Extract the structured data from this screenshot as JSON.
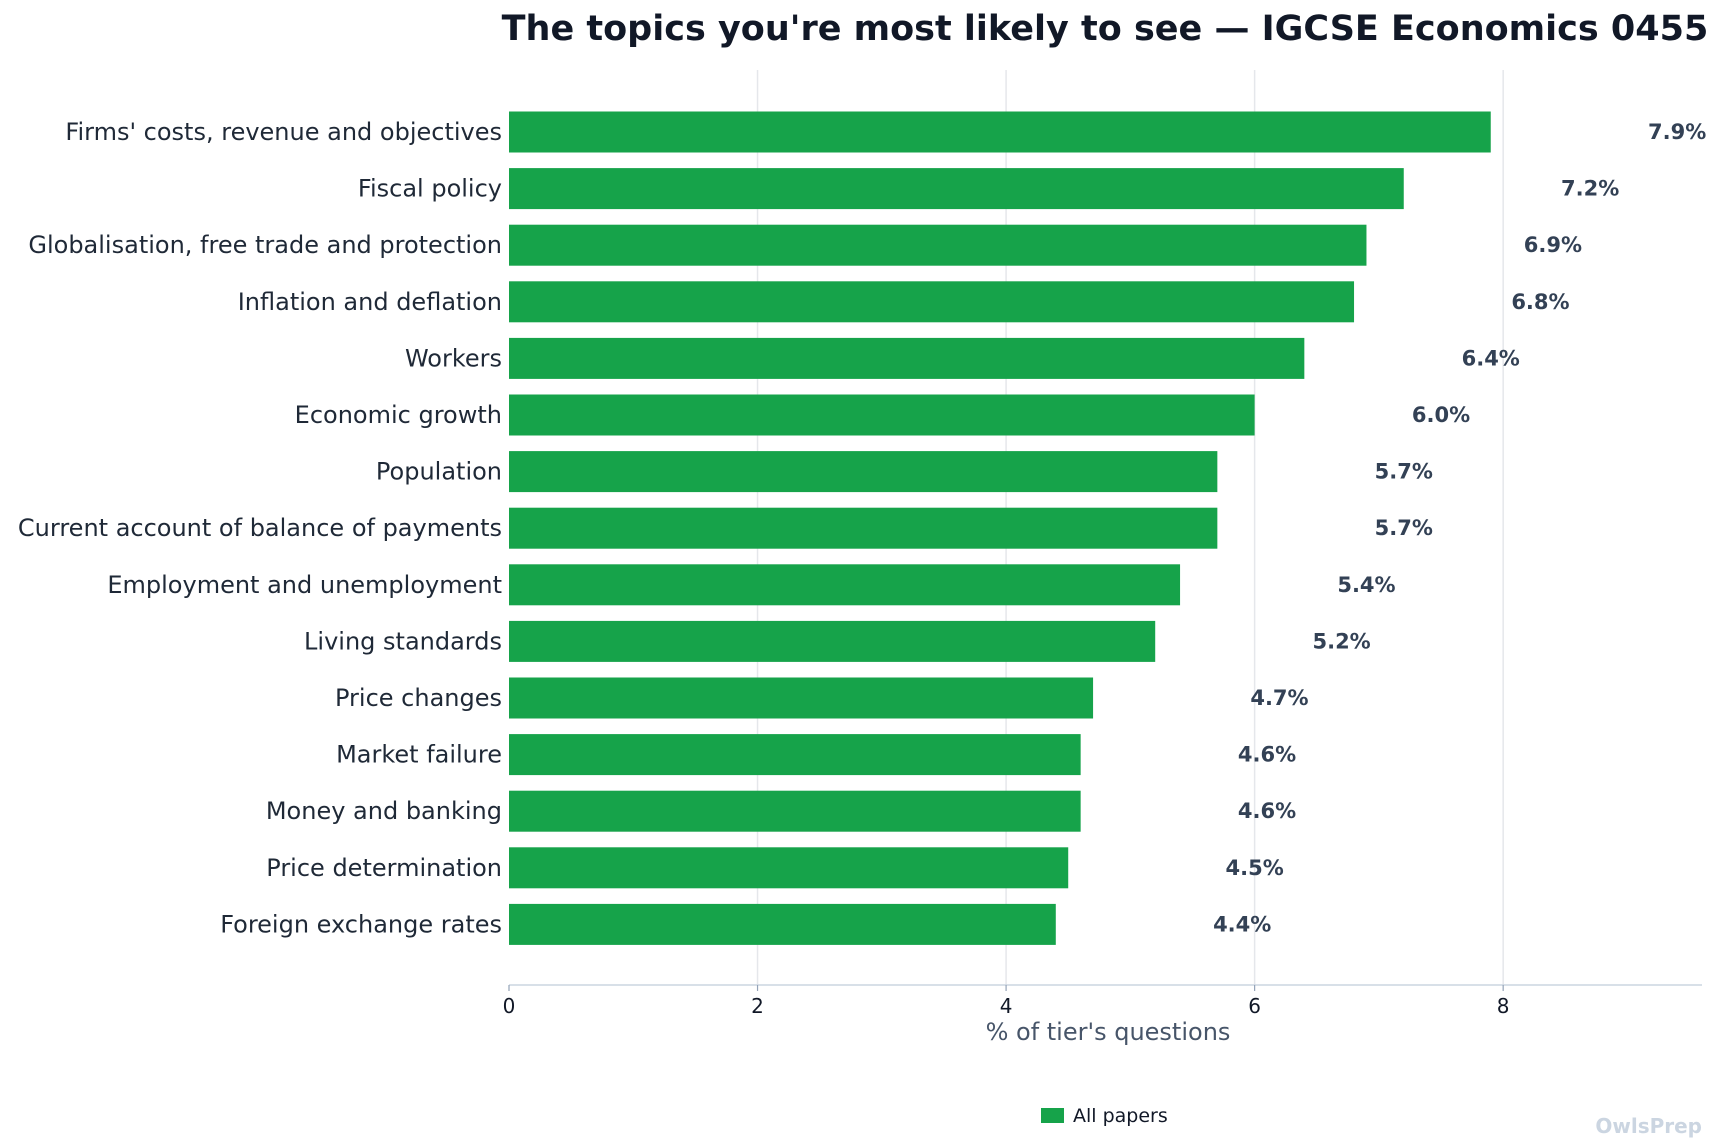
{
  "chart_data": {
    "type": "bar",
    "orientation": "horizontal",
    "title": "The topics you're most likely to see — IGCSE Economics 0455",
    "xlabel": "% of tier's questions",
    "ylabel": "",
    "xlim": [
      0,
      9.6
    ],
    "xticks": [
      0,
      2,
      4,
      6,
      8
    ],
    "grid": true,
    "legend_position": "bottom-center",
    "bar_color": "#16a34a",
    "categories": [
      "Firms' costs, revenue and objectives",
      "Fiscal policy",
      "Globalisation, free trade and protection",
      "Inflation and deflation",
      "Workers",
      "Economic growth",
      "Population",
      "Current account of balance of payments",
      "Employment and unemployment",
      "Living standards",
      "Price changes",
      "Market failure",
      "Money and banking",
      "Price determination",
      "Foreign exchange rates"
    ],
    "series": [
      {
        "name": "All papers",
        "values": [
          7.9,
          7.2,
          6.9,
          6.8,
          6.4,
          6.0,
          5.7,
          5.7,
          5.4,
          5.2,
          4.7,
          4.6,
          4.6,
          4.5,
          4.4
        ]
      }
    ],
    "value_labels": [
      "7.9%",
      "7.2%",
      "6.9%",
      "6.8%",
      "6.4%",
      "6.0%",
      "5.7%",
      "5.7%",
      "5.4%",
      "5.2%",
      "4.7%",
      "4.6%",
      "4.6%",
      "4.5%",
      "4.4%"
    ]
  },
  "watermark": "OwlsPrep"
}
